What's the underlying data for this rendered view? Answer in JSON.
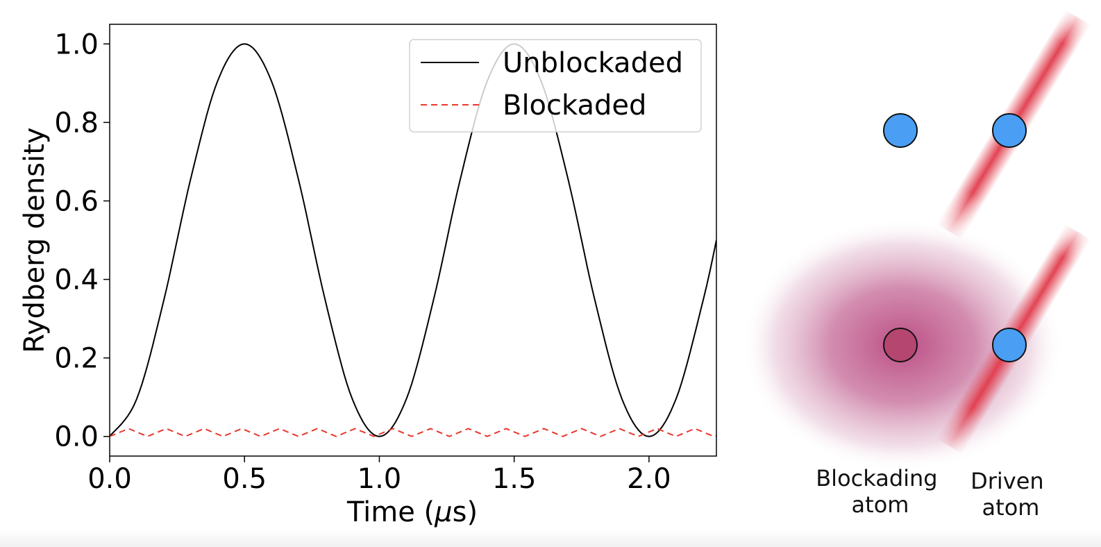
{
  "chart_data": {
    "type": "line",
    "xlabel_prefix": "Time (",
    "xlabel_unit": "μ",
    "xlabel_suffix": "s)",
    "ylabel": "Rydberg density",
    "xlim": [
      0.0,
      2.25
    ],
    "ylim": [
      -0.05,
      1.05
    ],
    "x_ticks": [
      "0.0",
      "0.5",
      "1.0",
      "1.5",
      "2.0"
    ],
    "y_ticks": [
      "0.0",
      "0.2",
      "0.4",
      "0.6",
      "0.8",
      "1.0"
    ],
    "grid": false,
    "legend_position": "top-right",
    "series": [
      {
        "name": "Unblockaded",
        "style": "solid",
        "color": "#000000",
        "x": [
          0.0,
          0.1,
          0.2,
          0.3,
          0.4,
          0.5,
          0.6,
          0.7,
          0.8,
          0.9,
          1.0,
          1.1,
          1.2,
          1.3,
          1.4,
          1.5,
          1.6,
          1.7,
          1.8,
          1.9,
          2.0,
          2.1,
          2.2,
          2.25
        ],
        "y": [
          0.0,
          0.095,
          0.345,
          0.655,
          0.905,
          1.0,
          0.905,
          0.655,
          0.345,
          0.095,
          0.0,
          0.095,
          0.345,
          0.655,
          0.905,
          1.0,
          0.905,
          0.655,
          0.345,
          0.095,
          0.0,
          0.095,
          0.345,
          0.5
        ]
      },
      {
        "name": "Blockaded",
        "style": "dashed",
        "color": "#e8372c",
        "x": [
          0.0,
          0.035,
          0.07,
          0.105,
          0.14,
          0.175,
          0.21,
          0.245,
          0.28,
          0.315,
          0.35,
          0.385,
          0.42,
          0.455,
          0.49,
          0.525,
          0.56,
          0.595,
          0.63,
          0.665,
          0.7,
          0.735,
          0.77,
          0.805,
          0.84,
          0.875,
          0.91,
          0.945,
          0.98,
          1.015,
          1.05,
          1.085,
          1.12,
          1.155,
          1.19,
          1.225,
          1.26,
          1.295,
          1.33,
          1.365,
          1.4,
          1.435,
          1.47,
          1.505,
          1.54,
          1.575,
          1.61,
          1.645,
          1.68,
          1.715,
          1.75,
          1.785,
          1.82,
          1.855,
          1.89,
          1.925,
          1.96,
          1.995,
          2.03,
          2.065,
          2.1,
          2.135,
          2.17,
          2.205,
          2.24,
          2.25
        ],
        "y": [
          0.0,
          0.01,
          0.02,
          0.01,
          0.0,
          0.01,
          0.02,
          0.01,
          0.0,
          0.01,
          0.02,
          0.01,
          0.0,
          0.01,
          0.02,
          0.01,
          0.0,
          0.01,
          0.02,
          0.01,
          0.0,
          0.01,
          0.02,
          0.01,
          0.0,
          0.01,
          0.02,
          0.01,
          0.0,
          0.01,
          0.02,
          0.01,
          0.0,
          0.01,
          0.02,
          0.01,
          0.0,
          0.01,
          0.02,
          0.01,
          0.0,
          0.01,
          0.02,
          0.01,
          0.0,
          0.01,
          0.02,
          0.01,
          0.0,
          0.01,
          0.02,
          0.01,
          0.0,
          0.01,
          0.02,
          0.01,
          0.0,
          0.01,
          0.02,
          0.01,
          0.0,
          0.01,
          0.02,
          0.01,
          0.0,
          0.002
        ]
      }
    ]
  },
  "diagram": {
    "blockading_label": [
      "Blockading",
      "atom"
    ],
    "driven_label": [
      "Driven",
      "atom"
    ],
    "atom_color": "#4a9ff5",
    "excited_atom_color": "#b5466f",
    "laser_color": "#e03a4a",
    "blockade_cloud_color": "#b03070"
  }
}
